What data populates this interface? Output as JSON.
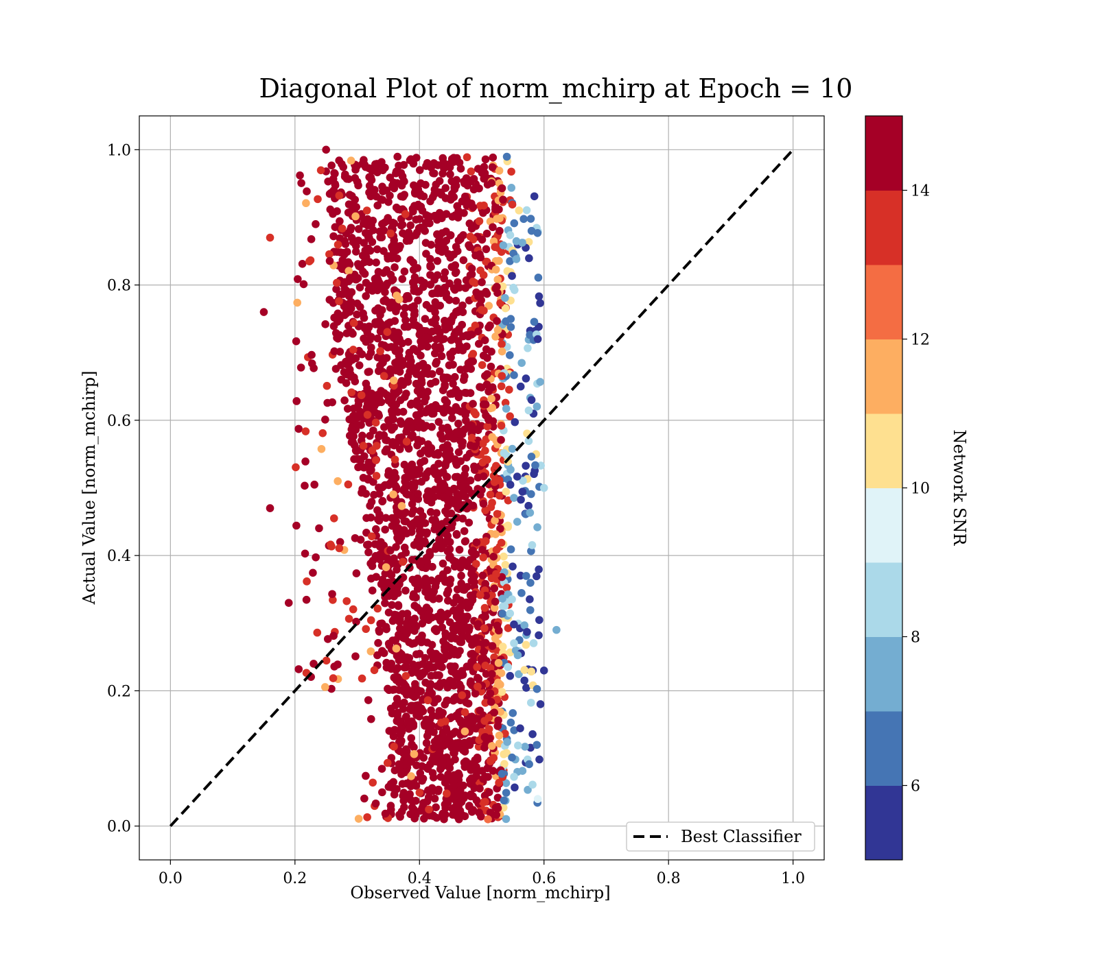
{
  "chart_data": {
    "type": "scatter",
    "title": "Diagonal Plot of norm_mchirp at Epoch = 10",
    "xlabel": "Observed Value [norm_mchirp]",
    "ylabel": "Actual Value [norm_mchirp]",
    "xlim": [
      -0.05,
      1.05
    ],
    "ylim": [
      -0.05,
      1.05
    ],
    "xticks": [
      0.0,
      0.2,
      0.4,
      0.6,
      0.8,
      1.0
    ],
    "yticks": [
      0.0,
      0.2,
      0.4,
      0.6,
      0.8,
      1.0
    ],
    "xtick_labels": [
      "0.0",
      "0.2",
      "0.4",
      "0.6",
      "0.8",
      "1.0"
    ],
    "ytick_labels": [
      "0.0",
      "0.2",
      "0.4",
      "0.6",
      "0.8",
      "1.0"
    ],
    "grid": true,
    "reference_line": {
      "name": "Best Classifier",
      "x": [
        0.0,
        1.0
      ],
      "y": [
        0.0,
        1.0
      ],
      "style": "dashed",
      "color": "#000000"
    },
    "legend": {
      "placement": "lower-right",
      "entries": [
        "Best Classifier"
      ]
    },
    "colorbar": {
      "label": "Network SNR",
      "range": [
        5,
        15
      ],
      "ticks": [
        6,
        8,
        10,
        12,
        14
      ],
      "tick_labels": [
        "6",
        "8",
        "10",
        "12",
        "14"
      ],
      "colormap": "RdYlBu_r",
      "bin_colors": [
        "#313695",
        "#4575b4",
        "#74add1",
        "#abd9e9",
        "#e0f3f8",
        "#fee090",
        "#fdae61",
        "#f46d43",
        "#d73027",
        "#a50026"
      ]
    },
    "scatter_summary": {
      "description_points": [
        {
          "x": 0.15,
          "y": 0.76,
          "snr": 15
        },
        {
          "x": 0.16,
          "y": 0.87,
          "snr": 13
        },
        {
          "x": 0.16,
          "y": 0.47,
          "snr": 14
        },
        {
          "x": 0.19,
          "y": 0.33,
          "snr": 15
        },
        {
          "x": 0.25,
          "y": 1.0,
          "snr": 15
        },
        {
          "x": 0.23,
          "y": 0.24,
          "snr": 14
        },
        {
          "x": 0.34,
          "y": 0.05,
          "snr": 15
        },
        {
          "x": 0.48,
          "y": 0.03,
          "snr": 15
        },
        {
          "x": 0.51,
          "y": 0.01,
          "snr": 12
        },
        {
          "x": 0.58,
          "y": 0.88,
          "snr": 6
        },
        {
          "x": 0.6,
          "y": 0.5,
          "snr": 8
        },
        {
          "x": 0.62,
          "y": 0.29,
          "snr": 7
        },
        {
          "x": 0.6,
          "y": 0.23,
          "snr": 5
        },
        {
          "x": 0.59,
          "y": 0.04,
          "snr": 9
        },
        {
          "x": 0.58,
          "y": 0.63,
          "snr": 5
        },
        {
          "x": 0.59,
          "y": 0.72,
          "snr": 5
        }
      ],
      "cluster_colors": {
        "core": "#a50026",
        "edge": "#d73027",
        "transition": "#fdae61",
        "low": "#4575b4"
      }
    }
  }
}
